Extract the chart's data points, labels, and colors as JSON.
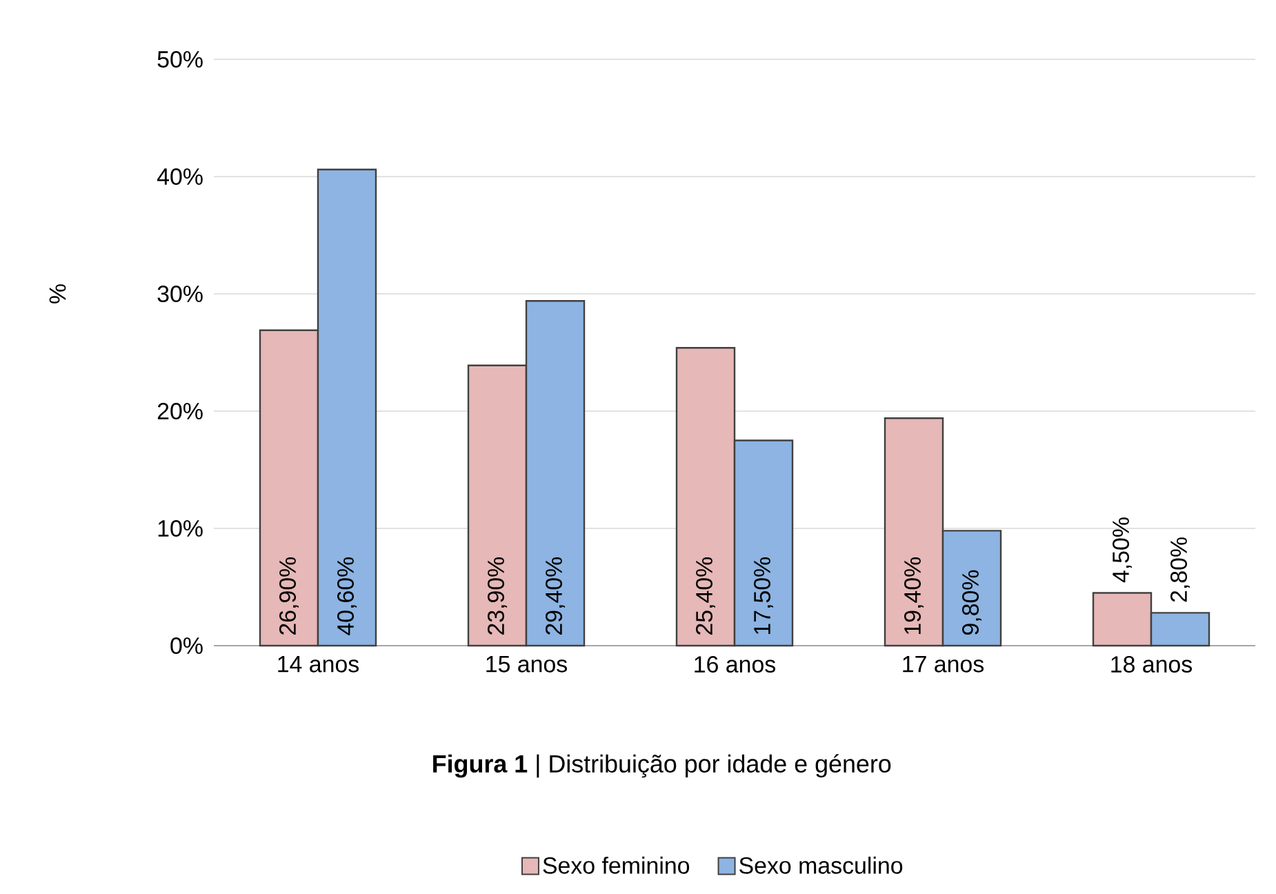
{
  "chart_data": {
    "type": "bar",
    "ylabel": "%",
    "categories": [
      "14 anos",
      "15 anos",
      "16 anos",
      "17 anos",
      "18 anos"
    ],
    "series": [
      {
        "name": "Sexo feminino",
        "color": "#e6b8b7",
        "values": [
          26.9,
          23.9,
          25.4,
          19.4,
          4.5
        ],
        "value_labels": [
          "26,90%",
          "23,90%",
          "25,40%",
          "19,40%",
          "4,50%"
        ]
      },
      {
        "name": "Sexo masculino",
        "color": "#8db4e2",
        "values": [
          40.6,
          29.4,
          17.5,
          9.8,
          2.8
        ],
        "value_labels": [
          "40,60%",
          "29,40%",
          "17,50%",
          "9,80%",
          "2,80%"
        ]
      }
    ],
    "ylim": [
      0,
      50
    ],
    "yticks": [
      {
        "value": 0,
        "label": "0%"
      },
      {
        "value": 10,
        "label": "10%"
      },
      {
        "value": 20,
        "label": "20%"
      },
      {
        "value": 30,
        "label": "30%"
      },
      {
        "value": 40,
        "label": "40%"
      },
      {
        "value": 50,
        "label": "50%"
      }
    ],
    "grid": "y",
    "legend": "bottom",
    "annotations": [
      "**Figura 1** | Distribuição por idade e género"
    ]
  }
}
